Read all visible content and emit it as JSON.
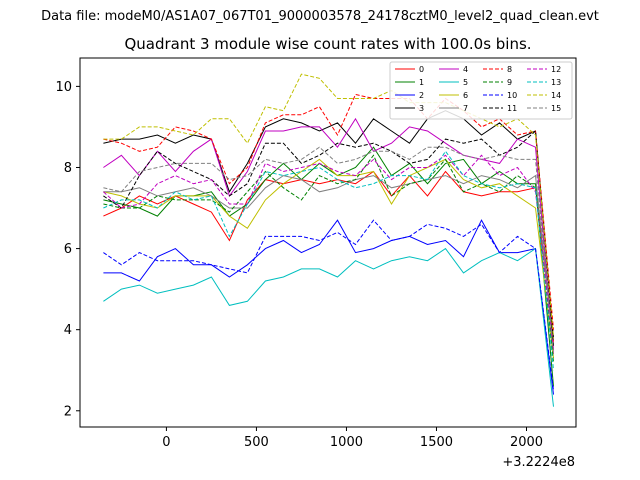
{
  "suptitle": "Data file: modeM0/AS1A07_067T01_9000003578_24178cztM0_level2_quad_clean.evt",
  "chart_data": {
    "type": "line",
    "title": "Quadrant 3 module wise count rates with 100.0s bins.",
    "xlabel": "",
    "ylabel": "",
    "x_offset_label": "+3.2224e8",
    "xlim": [
      -480,
      2275
    ],
    "ylim": [
      1.6,
      10.7
    ],
    "xticks": [
      0,
      500,
      1000,
      1500,
      2000
    ],
    "yticks": [
      2,
      4,
      6,
      8,
      10
    ],
    "legend_location": "upper-right",
    "legend_columns": 4,
    "x": [
      -350,
      -250,
      -150,
      -50,
      50,
      150,
      250,
      350,
      450,
      550,
      650,
      750,
      850,
      950,
      1050,
      1150,
      1250,
      1350,
      1450,
      1550,
      1650,
      1750,
      1850,
      1950,
      2050,
      2150
    ],
    "series": [
      {
        "name": "0",
        "color": "#ff0000",
        "dash": "solid",
        "values": [
          6.8,
          7.0,
          7.3,
          7.1,
          7.3,
          7.1,
          6.9,
          6.2,
          7.2,
          7.7,
          7.6,
          7.7,
          7.6,
          7.7,
          7.6,
          7.9,
          7.3,
          7.8,
          7.3,
          7.9,
          7.4,
          7.3,
          7.4,
          7.4,
          7.5,
          3.7
        ]
      },
      {
        "name": "1",
        "color": "#008000",
        "dash": "solid",
        "values": [
          7.2,
          7.1,
          7.0,
          6.8,
          7.3,
          7.3,
          7.4,
          6.8,
          7.1,
          7.7,
          8.1,
          7.7,
          8.1,
          7.8,
          8.0,
          8.5,
          7.8,
          8.1,
          7.6,
          8.1,
          8.2,
          7.6,
          7.9,
          7.6,
          7.6,
          2.6
        ]
      },
      {
        "name": "2",
        "color": "#0000ff",
        "dash": "solid",
        "values": [
          5.4,
          5.4,
          5.2,
          5.8,
          6.0,
          5.6,
          5.6,
          5.3,
          5.6,
          6.0,
          6.2,
          5.9,
          6.1,
          6.7,
          5.9,
          6.0,
          6.2,
          6.3,
          6.1,
          6.2,
          5.8,
          6.7,
          5.9,
          5.9,
          6.0,
          2.4
        ]
      },
      {
        "name": "3",
        "color": "#000000",
        "dash": "solid",
        "values": [
          8.6,
          8.7,
          8.7,
          8.8,
          8.6,
          8.8,
          8.7,
          7.4,
          8.1,
          9.0,
          9.2,
          9.1,
          8.9,
          9.1,
          8.6,
          9.2,
          8.9,
          8.6,
          9.2,
          9.4,
          9.2,
          8.8,
          9.1,
          8.7,
          8.9,
          3.8
        ]
      },
      {
        "name": "4",
        "color": "#c000c0",
        "dash": "solid",
        "values": [
          8.0,
          8.3,
          7.8,
          8.4,
          7.9,
          8.4,
          8.7,
          7.3,
          7.9,
          8.9,
          8.9,
          9.0,
          9.0,
          8.5,
          9.2,
          8.4,
          8.6,
          9.0,
          8.9,
          8.6,
          8.3,
          8.2,
          8.1,
          8.7,
          8.5,
          3.4
        ]
      },
      {
        "name": "5",
        "color": "#00bfbf",
        "dash": "solid",
        "values": [
          4.7,
          5.0,
          5.1,
          4.9,
          5.0,
          5.1,
          5.3,
          4.6,
          4.7,
          5.2,
          5.3,
          5.5,
          5.5,
          5.3,
          5.7,
          5.5,
          5.7,
          5.8,
          5.7,
          6.0,
          5.4,
          5.7,
          5.9,
          5.7,
          6.0,
          2.1
        ]
      },
      {
        "name": "6",
        "color": "#bfbf00",
        "dash": "solid",
        "values": [
          7.4,
          7.3,
          7.1,
          7.0,
          7.3,
          7.3,
          7.3,
          6.8,
          6.5,
          7.2,
          7.6,
          7.9,
          8.2,
          7.8,
          7.8,
          7.9,
          7.1,
          7.8,
          8.0,
          8.2,
          7.7,
          7.5,
          7.6,
          7.3,
          7.0,
          3.3
        ]
      },
      {
        "name": "7",
        "color": "#808080",
        "dash": "solid",
        "values": [
          7.4,
          7.4,
          7.5,
          7.3,
          7.4,
          7.5,
          7.3,
          7.0,
          7.0,
          7.5,
          7.8,
          7.7,
          7.4,
          7.5,
          7.7,
          7.8,
          7.5,
          7.6,
          7.7,
          7.8,
          7.6,
          7.8,
          7.7,
          7.5,
          7.8,
          3.5
        ]
      },
      {
        "name": "8",
        "color": "#ff0000",
        "dash": "dashed",
        "values": [
          8.7,
          8.6,
          8.4,
          8.5,
          9.0,
          8.9,
          8.7,
          7.6,
          8.0,
          9.1,
          9.3,
          9.3,
          9.5,
          8.8,
          9.8,
          9.7,
          9.7,
          9.7,
          9.2,
          9.7,
          9.4,
          9.0,
          9.2,
          8.8,
          8.9,
          4.0
        ]
      },
      {
        "name": "9",
        "color": "#008000",
        "dash": "dashed",
        "values": [
          7.1,
          7.0,
          7.0,
          7.3,
          7.2,
          7.2,
          7.2,
          6.9,
          7.4,
          7.9,
          7.5,
          7.2,
          7.8,
          7.6,
          7.7,
          8.3,
          7.3,
          7.6,
          7.7,
          8.2,
          7.4,
          7.6,
          7.4,
          7.8,
          7.5,
          3.2
        ]
      },
      {
        "name": "10",
        "color": "#0000ff",
        "dash": "dashed",
        "values": [
          5.9,
          5.6,
          5.9,
          5.7,
          5.7,
          5.7,
          5.6,
          5.5,
          5.4,
          6.3,
          6.3,
          6.3,
          6.2,
          6.4,
          6.1,
          6.7,
          6.2,
          6.3,
          6.6,
          6.5,
          6.3,
          6.6,
          5.9,
          6.3,
          6.0,
          2.5
        ]
      },
      {
        "name": "11",
        "color": "#000000",
        "dash": "dashed",
        "values": [
          7.3,
          7.0,
          7.8,
          8.4,
          8.1,
          7.9,
          7.7,
          7.3,
          7.6,
          8.6,
          8.6,
          8.1,
          8.3,
          8.6,
          8.5,
          8.6,
          8.4,
          8.1,
          8.2,
          8.7,
          8.6,
          8.7,
          8.3,
          8.5,
          8.9,
          3.6
        ]
      },
      {
        "name": "12",
        "color": "#c000c0",
        "dash": "dashed",
        "values": [
          7.4,
          7.0,
          7.1,
          7.6,
          7.8,
          7.6,
          7.7,
          7.1,
          7.1,
          8.1,
          7.9,
          8.0,
          8.1,
          7.9,
          7.8,
          8.2,
          7.7,
          8.0,
          8.0,
          8.3,
          7.8,
          8.3,
          7.8,
          8.0,
          7.4,
          3.5
        ]
      },
      {
        "name": "13",
        "color": "#00bfbf",
        "dash": "dashed",
        "values": [
          7.0,
          7.2,
          7.2,
          7.0,
          7.4,
          7.2,
          7.3,
          6.3,
          7.1,
          7.9,
          7.8,
          7.9,
          8.0,
          7.7,
          7.5,
          7.6,
          7.8,
          7.8,
          7.7,
          8.4,
          7.8,
          7.6,
          7.5,
          7.6,
          7.5,
          3.0
        ]
      },
      {
        "name": "14",
        "color": "#bfbf00",
        "dash": "dashed",
        "values": [
          8.7,
          8.7,
          9.0,
          9.0,
          8.9,
          8.8,
          9.2,
          9.2,
          8.6,
          9.5,
          9.4,
          10.3,
          10.2,
          9.7,
          9.7,
          9.7,
          9.9,
          9.6,
          9.6,
          9.6,
          9.4,
          9.2,
          9.0,
          9.2,
          8.8,
          3.8
        ]
      },
      {
        "name": "15",
        "color": "#808080",
        "dash": "dashed",
        "values": [
          7.5,
          7.4,
          7.9,
          8.0,
          8.1,
          8.1,
          8.1,
          7.7,
          7.8,
          8.2,
          8.1,
          8.2,
          8.5,
          8.1,
          8.2,
          8.4,
          8.4,
          8.2,
          8.5,
          8.5,
          8.3,
          8.2,
          8.3,
          8.2,
          8.2,
          3.4
        ]
      }
    ]
  }
}
